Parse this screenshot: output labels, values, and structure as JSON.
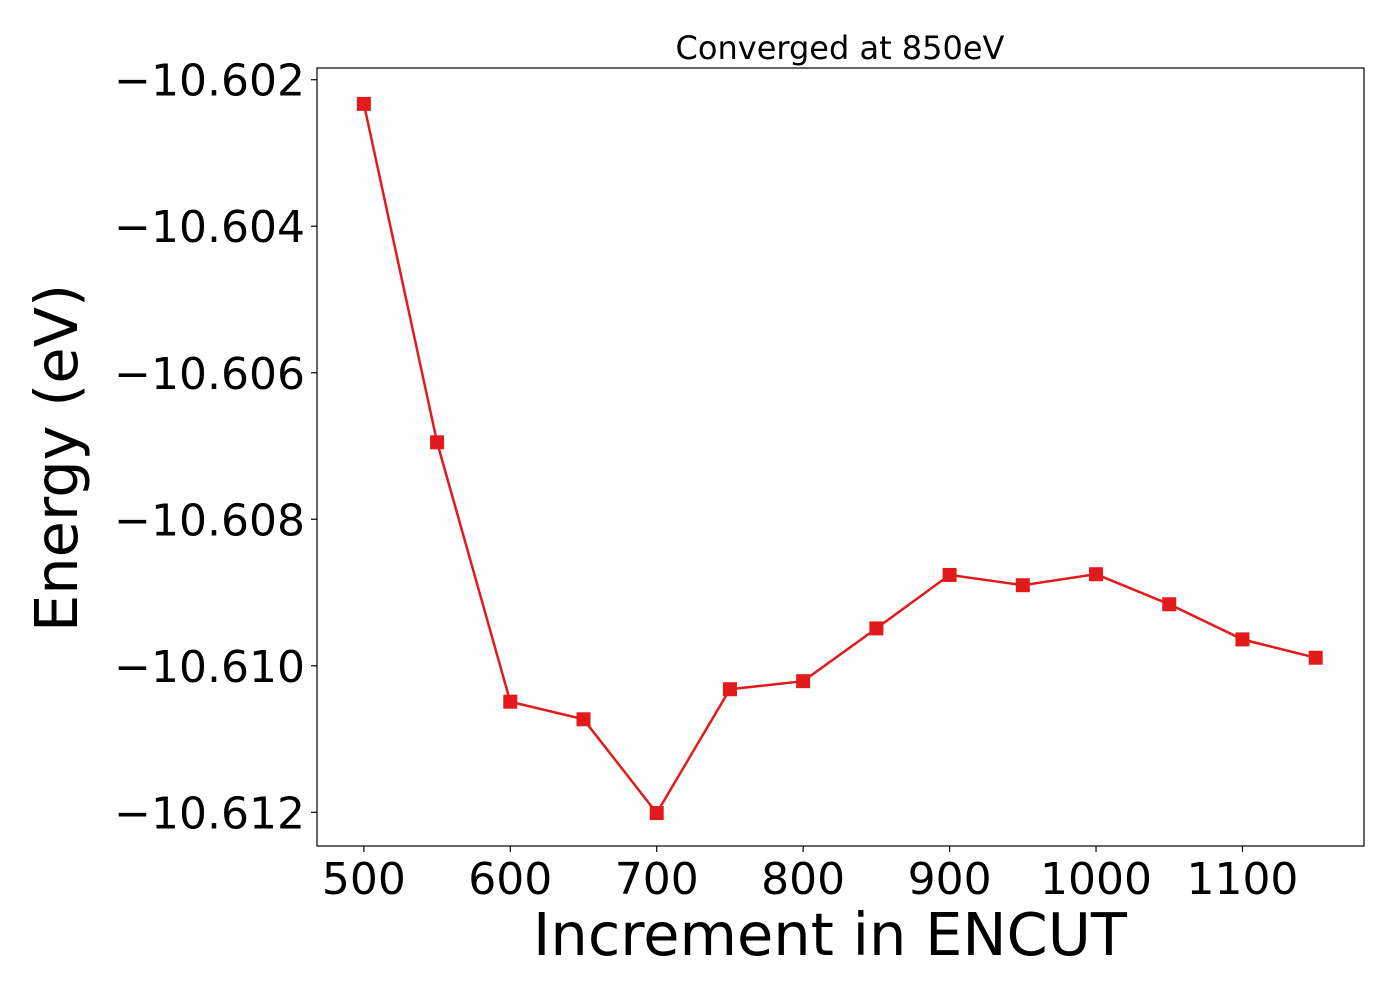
{
  "chart_data": {
    "type": "line",
    "title": "Converged at 850eV",
    "xlabel": "Increment in ENCUT",
    "ylabel": "Energy (eV)",
    "xlim": [
      468,
      1183
    ],
    "ylim": [
      -10.61246,
      -10.60184
    ],
    "xticks": [
      500,
      600,
      700,
      800,
      900,
      1000,
      1100
    ],
    "yticks": [
      -10.602,
      -10.604,
      -10.606,
      -10.608,
      -10.61,
      -10.612
    ],
    "ytick_labels": [
      "−10.602",
      "−10.604",
      "−10.606",
      "−10.608",
      "−10.610",
      "−10.612"
    ],
    "grid": false,
    "series": [
      {
        "color": "#e31a1c",
        "marker": "square",
        "x": [
          500,
          550,
          600,
          650,
          700,
          750,
          800,
          850,
          900,
          950,
          1000,
          1050,
          1100,
          1150
        ],
        "y": [
          -10.60233,
          -10.60695,
          -10.61049,
          -10.61073,
          -10.61201,
          -10.61032,
          -10.61021,
          -10.60949,
          -10.60876,
          -10.6089,
          -10.60875,
          -10.60916,
          -10.60964,
          -10.60989
        ]
      }
    ]
  }
}
